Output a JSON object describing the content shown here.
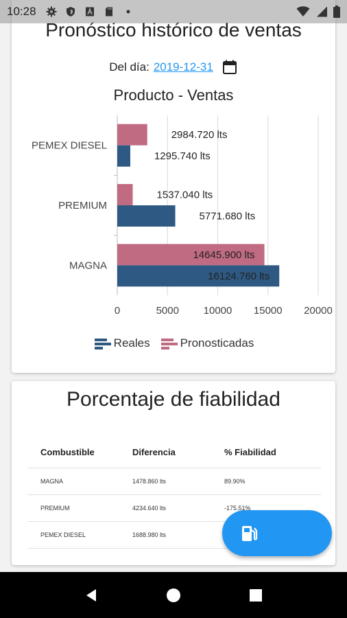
{
  "status_bar": {
    "time": "10:28"
  },
  "forecast_card": {
    "title": "Pronóstico histórico de ventas",
    "date_label": "Del día:",
    "date_value": "2019-12-31"
  },
  "chart_data": {
    "type": "bar",
    "orientation": "horizontal",
    "title": "Producto - Ventas",
    "categories": [
      "PEMEX DIESEL",
      "PREMIUM",
      "MAGNA"
    ],
    "series": [
      {
        "name": "Pronosticadas",
        "values": [
          2984.72,
          1537.04,
          14645.9
        ],
        "labels": [
          "2984.720 lts",
          "1537.040 lts",
          "14645.900 lts"
        ],
        "color": "#c06b82"
      },
      {
        "name": "Reales",
        "values": [
          1295.74,
          5771.68,
          16124.76
        ],
        "labels": [
          "1295.740 lts",
          "5771.680 lts",
          "16124.760 lts"
        ],
        "color": "#2e5982"
      }
    ],
    "x_ticks": [
      "0",
      "5000",
      "10000",
      "15000",
      "20000"
    ],
    "xlim": [
      0,
      20000
    ],
    "grid": true,
    "legend": {
      "placement": "bottom",
      "items": [
        "Reales",
        "Pronosticadas"
      ]
    }
  },
  "reliability_card": {
    "title": "Porcentaje de fiabilidad",
    "columns": [
      "Combustible",
      "Diferencia",
      "% Fiabilidad"
    ],
    "rows": [
      [
        "MAGNA",
        "1478.860 lts",
        "89.90%"
      ],
      [
        "PREMIUM",
        "4234.640 lts",
        "-175.51%"
      ],
      [
        "PEMEX DIESEL",
        "1688.980 lts",
        ""
      ]
    ]
  },
  "fab": {
    "icon": "fuel-pump-icon",
    "color": "#2196f3"
  },
  "nav": {
    "icons": [
      "back-icon",
      "home-icon",
      "recents-icon"
    ]
  }
}
